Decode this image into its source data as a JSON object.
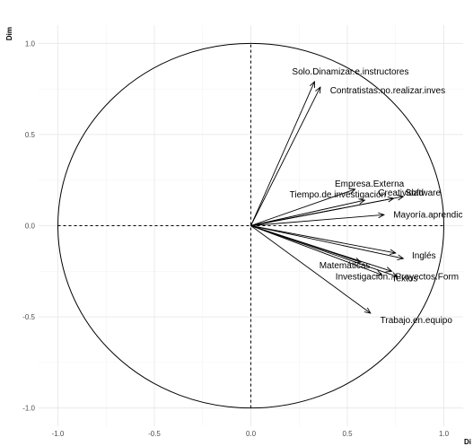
{
  "chart_data": {
    "type": "correlation-circle",
    "xlabel": "Di",
    "ylabel": "Dim",
    "xlim": [
      -1.1,
      1.1
    ],
    "ylim": [
      -1.1,
      1.1
    ],
    "x_ticks": [
      -1.0,
      -0.5,
      0.0,
      0.5,
      1.0
    ],
    "y_ticks": [
      -1.0,
      -0.5,
      0.0,
      0.5,
      1.0
    ],
    "x_tick_labels": [
      "-1.0",
      "-0.5",
      "0.0",
      "0.5",
      "1.0"
    ],
    "y_tick_labels": [
      "-1.0",
      "-0.5",
      "0.0",
      "0.5",
      "1.0"
    ],
    "grid": true,
    "unit_circle": true,
    "vectors": [
      {
        "name": "Solo.Dinamizar.e.instructores",
        "x": 0.33,
        "y": 0.79
      },
      {
        "name": "Contratistas.no.realizar.inves",
        "x": 0.36,
        "y": 0.76
      },
      {
        "name": "Empresa.Externa",
        "x": 0.54,
        "y": 0.2
      },
      {
        "name": "Software",
        "x": 0.79,
        "y": 0.16
      },
      {
        "name": "Creatividad",
        "x": 0.74,
        "y": 0.15
      },
      {
        "name": "Tiempo.de.investigación",
        "x": 0.59,
        "y": 0.14
      },
      {
        "name": "Mayoría.aprendic",
        "x": 0.69,
        "y": 0.06
      },
      {
        "name": "Inglés",
        "x": 0.79,
        "y": -0.18
      },
      {
        "name": "",
        "x": 0.75,
        "y": -0.15
      },
      {
        "name": "Matemáticas",
        "x": 0.57,
        "y": -0.2
      },
      {
        "name": "Investigación...Proyectos.Form",
        "x": 0.73,
        "y": -0.25
      },
      {
        "name": "Textos",
        "x": 0.76,
        "y": -0.28
      },
      {
        "name": "",
        "x": 0.68,
        "y": -0.27
      },
      {
        "name": "Trabajo.en.equipo",
        "x": 0.62,
        "y": -0.48
      }
    ]
  }
}
